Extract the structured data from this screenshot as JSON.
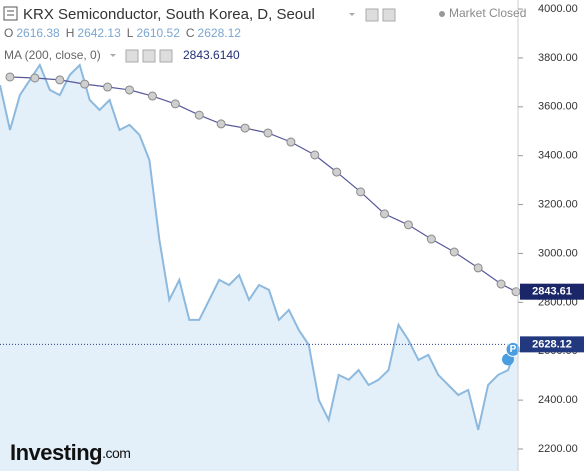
{
  "chart_data": {
    "type": "line",
    "title": "KRX Semiconductor, South Korea, D, Seoul",
    "status": "Market Closed",
    "ohlc": [
      {
        "label": "O",
        "value": 2616.38
      },
      {
        "label": "H",
        "value": 2642.13
      },
      {
        "label": "L",
        "value": 2610.52
      },
      {
        "label": "C",
        "value": 2628.12
      }
    ],
    "indicator": {
      "name": "MA (200, close, 0)",
      "value_label": "2843.6140"
    },
    "marker_label": "P",
    "logo": [
      "Investing",
      ".com"
    ],
    "xlim": [
      0,
      52
    ],
    "ylim": [
      2110,
      4037
    ],
    "yticks": [
      {
        "value": 2200,
        "label": "2200.00"
      },
      {
        "value": 2400,
        "label": "2400.00"
      },
      {
        "value": 2600,
        "label": "2600.00"
      },
      {
        "value": 2800,
        "label": "2800.00"
      },
      {
        "value": 3000,
        "label": "3000.00"
      },
      {
        "value": 3200,
        "label": "3200.00"
      },
      {
        "value": 3400,
        "label": "3400.00"
      },
      {
        "value": 3600,
        "label": "3600.00"
      },
      {
        "value": 3800,
        "label": "3800.00"
      },
      {
        "value": 4000,
        "label": "4000.00"
      }
    ],
    "series": [
      {
        "color": "#8db9de",
        "fill": "#e3f0fa",
        "x": [
          0,
          1,
          2,
          3,
          4,
          5,
          6,
          7,
          8,
          9,
          10,
          11,
          12,
          13,
          14,
          15,
          16,
          17,
          18,
          19,
          20,
          21,
          22,
          23,
          24,
          25,
          26,
          27,
          28,
          29,
          30,
          31,
          32,
          33,
          34,
          35,
          36,
          37,
          38,
          39,
          40,
          41,
          42,
          43,
          44,
          45,
          46,
          47,
          48,
          49,
          50,
          51,
          52
        ],
        "values": [
          3689,
          3505,
          3648,
          3710,
          3771,
          3669,
          3648,
          3730,
          3771,
          3628,
          3587,
          3628,
          3505,
          3526,
          3485,
          3382,
          3055,
          2810,
          2892,
          2728,
          2728,
          2810,
          2892,
          2871,
          2912,
          2810,
          2871,
          2851,
          2728,
          2769,
          2687,
          2626,
          2401,
          2319,
          2503,
          2483,
          2523,
          2462,
          2483,
          2523,
          2708,
          2646,
          2564,
          2585,
          2503,
          2462,
          2421,
          2442,
          2278,
          2462,
          2503,
          2523,
          2628.12
        ]
      },
      {
        "color": "#56589a",
        "marker_color": "#cfcfcf",
        "x": [
          1,
          3.5,
          6,
          8.5,
          10.8,
          13,
          15.3,
          17.6,
          20,
          22.2,
          24.6,
          26.9,
          29.2,
          31.6,
          33.8,
          36.2,
          38.6,
          41,
          43.3,
          45.6,
          48,
          50.3,
          51.8
        ],
        "values": [
          3722,
          3718,
          3710,
          3693,
          3681,
          3669,
          3644,
          3612,
          3566,
          3530,
          3513,
          3493,
          3456,
          3403,
          3333,
          3252,
          3162,
          3117,
          3059,
          3006,
          2941,
          2875,
          2843.61
        ]
      }
    ]
  }
}
